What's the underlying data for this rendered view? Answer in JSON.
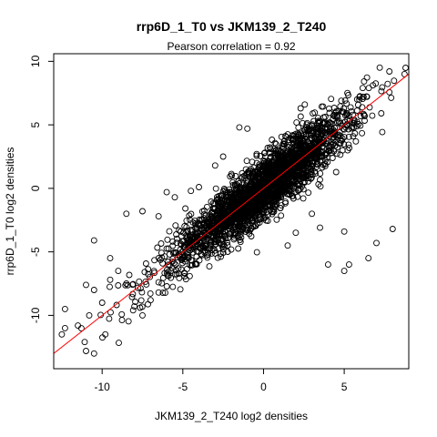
{
  "chart_data": {
    "type": "scatter",
    "title": "rrp6D_1_T0 vs JKM139_2_T240",
    "subtitle": "Pearson correlation =  0.92",
    "xlabel": "JKM139_2_T240 log2 densities",
    "ylabel": "rrp6D_1_T0 log2 densities",
    "xlim": [
      -13.0,
      9.0
    ],
    "ylim": [
      -14.2,
      10.6
    ],
    "x_ticks": [
      -10,
      -5,
      0,
      5
    ],
    "y_ticks": [
      -10,
      -5,
      0,
      5,
      10
    ],
    "x_tick_labels": [
      "-10",
      "-5",
      "0",
      "5"
    ],
    "y_tick_labels": [
      "-10",
      "-5",
      "0",
      "5",
      "10"
    ],
    "grid": false,
    "legend": "none",
    "point_style": "open circle",
    "point_color": "#000000",
    "fit_line": {
      "color": "#ff0000",
      "intercept": 0.0,
      "slope": 1.0
    },
    "points": [
      [
        7.2,
        9.5
      ],
      [
        7.8,
        9.2
      ],
      [
        5.2,
        7.5
      ],
      [
        5.8,
        7.0
      ],
      [
        6.2,
        7.2
      ],
      [
        2.3,
        6.3
      ],
      [
        -1.0,
        4.7
      ],
      [
        -1.5,
        4.8
      ],
      [
        -2.5,
        2.5
      ],
      [
        -3.0,
        1.8
      ],
      [
        -4.0,
        0.1
      ],
      [
        -4.5,
        -0.2
      ],
      [
        -5.5,
        -0.7
      ],
      [
        -6.0,
        -0.3
      ],
      [
        -7.5,
        -1.8
      ],
      [
        -8.5,
        -2.0
      ],
      [
        -6.5,
        -2.2
      ],
      [
        4.0,
        -6.0
      ],
      [
        5.0,
        -6.5
      ],
      [
        5.3,
        -6.0
      ],
      [
        6.5,
        -5.5
      ],
      [
        7.0,
        -4.3
      ],
      [
        8.0,
        -3.2
      ],
      [
        5.0,
        -3.4
      ],
      [
        3.5,
        -3.1
      ],
      [
        3.0,
        -2.0
      ],
      [
        1.5,
        -4.5
      ],
      [
        2.0,
        -3.5
      ],
      [
        -12.3,
        -9.5
      ],
      [
        -12.3,
        -11.0
      ],
      [
        -12.5,
        -11.5
      ],
      [
        -11.0,
        -12.8
      ],
      [
        -10.5,
        -13.0
      ],
      [
        -11.5,
        -10.8
      ],
      [
        -10.8,
        -10.0
      ],
      [
        -10.0,
        -9.0
      ],
      [
        -10.5,
        -8.0
      ],
      [
        -9.5,
        -7.2
      ],
      [
        -10.5,
        -4.1
      ],
      [
        -9.5,
        -5.5
      ],
      [
        -9.0,
        -6.5
      ],
      [
        -8.5,
        -7.5
      ],
      [
        -8.0,
        -9.3
      ],
      [
        -7.5,
        -10.0
      ],
      [
        -7.0,
        -8.8
      ],
      [
        -6.5,
        -8.2
      ],
      [
        -11.0,
        -7.6
      ],
      [
        -9.8,
        -11.5
      ]
    ]
  }
}
